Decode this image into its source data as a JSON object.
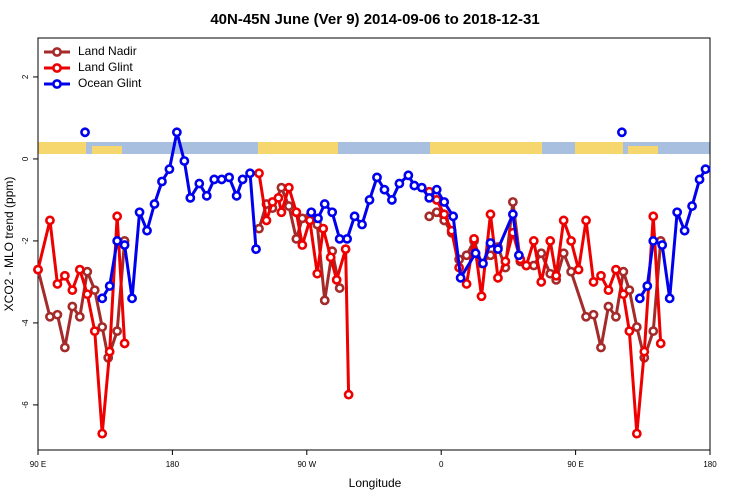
{
  "chart_data": {
    "type": "line",
    "title": "40N-45N June (Ver 9)   2014-09-06 to 2018-12-31",
    "x_label": "Longitude",
    "y_label": "XCO2 - MLO trend (ppm)",
    "xlim": [
      90,
      540
    ],
    "xticks": [
      {
        "value": 90,
        "label": "90 E"
      },
      180,
      {
        "value": 270,
        "label": "90 W"
      },
      {
        "value": 360,
        "label": "0"
      },
      {
        "value": 450,
        "label": "90 E"
      },
      {
        "value": 540,
        "label": "180"
      }
    ],
    "ylim": [
      -7.1,
      2.95
    ],
    "yticks": [
      -6,
      -4,
      -2,
      0,
      2
    ],
    "grid": false,
    "legend": "top-left",
    "series": [
      {
        "name": "Land Nadir",
        "color": "#a52a2a",
        "x": [
          90,
          98,
          103,
          108,
          113,
          118,
          123,
          128,
          133,
          137,
          143,
          148,
          null,
          238,
          243,
          247,
          253,
          258,
          263,
          267,
          272,
          277,
          282,
          287,
          292,
          null,
          352,
          357,
          362,
          367,
          372,
          377,
          382,
          387,
          393,
          398,
          403,
          408,
          413,
          417,
          422,
          427,
          433,
          437,
          442,
          447,
          457,
          462,
          467,
          472,
          477,
          482,
          486,
          491,
          496,
          502,
          507
        ],
        "values": [
          -2.7,
          -3.85,
          -3.8,
          -4.6,
          -3.6,
          -3.85,
          -2.75,
          -3.2,
          -4.1,
          -4.85,
          -4.2,
          -2.0,
          null,
          -1.7,
          -1.1,
          -1.2,
          -0.7,
          -1.15,
          -1.95,
          -1.45,
          -1.4,
          -1.6,
          -3.45,
          -2.25,
          -3.15,
          null,
          -1.4,
          -1.3,
          -1.5,
          -1.8,
          -2.45,
          -2.35,
          -2.0,
          -2.55,
          -2.35,
          -2.15,
          -2.65,
          -1.05,
          -2.5,
          -2.6,
          -2.6,
          -2.3,
          -2.8,
          -2.95,
          -2.3,
          -2.75,
          -3.85,
          -3.8,
          -4.6,
          -3.6,
          -3.85,
          -2.75,
          -3.2,
          -4.1,
          -4.85,
          -4.2,
          -2.0
        ]
      },
      {
        "name": "Land Glint",
        "color": "#ee0000",
        "x": [
          90,
          98,
          103,
          108,
          113,
          118,
          123,
          128,
          133,
          138,
          143,
          148,
          null,
          238,
          243,
          247,
          251,
          253,
          258,
          263,
          267,
          272,
          277,
          281,
          286,
          290,
          296,
          298,
          null,
          352,
          357,
          362,
          367,
          372,
          377,
          382,
          387,
          393,
          398,
          403,
          408,
          413,
          417,
          422,
          427,
          433,
          437,
          442,
          447,
          452,
          457,
          462,
          467,
          472,
          477,
          482,
          486,
          491,
          496,
          502,
          507
        ],
        "values": [
          -2.7,
          -1.5,
          -3.05,
          -2.85,
          -3.2,
          -2.7,
          -3.3,
          -4.2,
          -6.7,
          -4.7,
          -1.4,
          -4.5,
          null,
          -0.35,
          -1.5,
          -1.05,
          -0.95,
          -1.3,
          -0.7,
          -1.3,
          -2.1,
          -1.5,
          -2.8,
          -1.7,
          -2.4,
          -2.95,
          -2.2,
          -5.75,
          null,
          -0.8,
          -1.0,
          -1.35,
          -1.75,
          -2.65,
          -3.05,
          -1.95,
          -3.35,
          -1.35,
          -2.9,
          -2.5,
          -1.8,
          -2.45,
          -2.6,
          -2.0,
          -3.0,
          -2.0,
          -2.85,
          -1.5,
          -2.0,
          -2.7,
          -1.5,
          -3.0,
          -2.85,
          -3.2,
          -2.7,
          -3.3,
          -4.2,
          -6.7,
          -4.7,
          -1.4,
          -4.5
        ]
      },
      {
        "name": "Ocean Glint",
        "color": "#0000ee",
        "x": [
          121.5,
          null,
          133,
          138,
          143,
          148,
          153,
          158,
          163,
          168,
          173,
          178,
          183,
          188,
          192,
          198,
          203,
          208,
          213,
          218,
          223,
          227,
          232,
          236,
          null,
          273,
          277.5,
          282,
          287,
          292,
          297,
          302,
          307,
          312,
          317,
          322,
          327,
          332,
          338,
          342,
          347,
          352,
          357,
          362,
          368,
          373,
          383,
          388,
          393,
          398,
          408,
          412,
          null,
          481,
          null,
          493,
          498,
          502,
          508,
          513,
          518,
          523,
          528,
          533,
          537
        ],
        "values": [
          0.65,
          null,
          -3.4,
          -3.1,
          -2.0,
          -2.1,
          -3.4,
          -1.3,
          -1.75,
          -1.1,
          -0.55,
          -0.25,
          0.65,
          -0.05,
          -0.95,
          -0.6,
          -0.9,
          -0.5,
          -0.5,
          -0.45,
          -0.9,
          -0.5,
          -0.35,
          -2.2,
          null,
          -1.3,
          -1.45,
          -1.1,
          -1.3,
          -1.95,
          -1.95,
          -1.4,
          -1.6,
          -1.0,
          -0.45,
          -0.75,
          -1.0,
          -0.6,
          -0.4,
          -0.65,
          -0.7,
          -0.95,
          -0.75,
          -1.05,
          -1.4,
          -2.9,
          -2.3,
          -2.55,
          -2.05,
          -2.2,
          -1.35,
          -2.35,
          null,
          0.65,
          null,
          -3.4,
          -3.1,
          -2.0,
          -2.1,
          -3.4,
          -1.3,
          -1.75,
          -1.15,
          -0.5,
          -0.25
        ]
      }
    ]
  }
}
